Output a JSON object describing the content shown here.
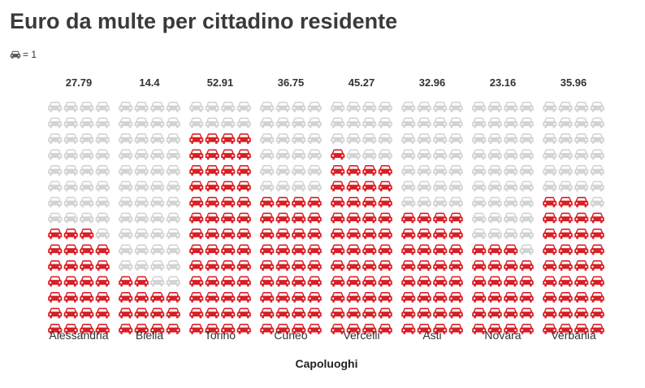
{
  "title": "Euro da multe per cittadino residente",
  "legend": {
    "icon": "car-icon",
    "label": "= 1"
  },
  "colors": {
    "filled": "#d81f26",
    "empty": "#d3d3d3"
  },
  "chart_data": {
    "type": "pictogram",
    "title": "Euro da multe per cittadino residente",
    "xlabel": "Capoluoghi",
    "unit_per_icon": 1,
    "icons_per_column": 60,
    "categories": [
      "Alessandria",
      "Biella",
      "Torino",
      "Cuneo",
      "Vercelli",
      "Asti",
      "Novara",
      "Verbania"
    ],
    "values": [
      27.79,
      14.4,
      52.91,
      36.75,
      45.27,
      32.96,
      23.16,
      35.96
    ],
    "value_labels": [
      "27.79",
      "14.4",
      "52.91",
      "36.75",
      "45.27",
      "32.96",
      "23.16",
      "35.96"
    ]
  }
}
